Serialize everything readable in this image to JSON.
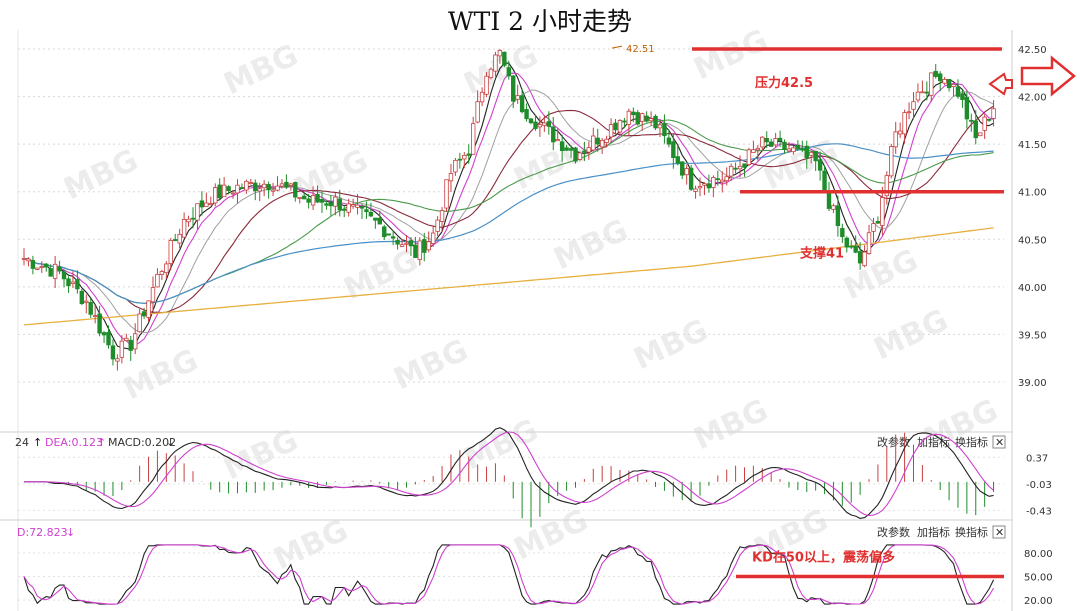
{
  "title": "WTI 2 小时走势",
  "watermark": "MBG",
  "colors": {
    "up": "#c84040",
    "down": "#1e8c2a",
    "resistance": "#e03030",
    "support": "#e03030",
    "ma_black": "#222222",
    "ma_pink": "#d040d0",
    "ma_gray": "#a0a0a0",
    "ma_brown": "#8a2a3a",
    "ma_green": "#4a9a4a",
    "ma_blue": "#4a90c8",
    "ma_yellow": "#e8b040",
    "annotation": "#e03030"
  },
  "chart_data": [
    {
      "type": "candlestick",
      "title": "WTI 2 小时走势",
      "ylim": [
        38.6,
        42.7
      ],
      "yticks": [
        "42.50",
        "42.00",
        "41.50",
        "41.00",
        "40.50",
        "40.00",
        "39.50",
        "39.00"
      ],
      "peak_label": "42.51",
      "resistance": {
        "value": 42.5,
        "label": "压力42.5"
      },
      "support": {
        "value": 41.0,
        "label": "支撑41",
        "label_level": 40.35
      },
      "ma_overlays": [
        "black",
        "pink",
        "gray",
        "brown",
        "green",
        "blue",
        "yellow"
      ]
    },
    {
      "type": "macd",
      "header": {
        "prefix": "24",
        "dea_label": "DEA:0.123",
        "dea_arrow": "↑",
        "macd_label": "MACD:0.202",
        "macd_arrow": "↓"
      },
      "buttons": [
        "改参数",
        "加指标",
        "换指标"
      ],
      "close_label": "✕",
      "yticks": [
        "0.37",
        "-0.03",
        "-0.43"
      ],
      "ylim": [
        -0.5,
        0.45
      ]
    },
    {
      "type": "kd",
      "header": {
        "d_label": "D:72.823",
        "arrow": "↓"
      },
      "buttons": [
        "改参数",
        "加指标",
        "换指标"
      ],
      "close_label": "✕",
      "yticks": [
        "80.00",
        "50.00",
        "20.00"
      ],
      "ylim": [
        10,
        95
      ],
      "annotation": "KD在50以上，震荡偏多",
      "ref_line": 50
    }
  ]
}
